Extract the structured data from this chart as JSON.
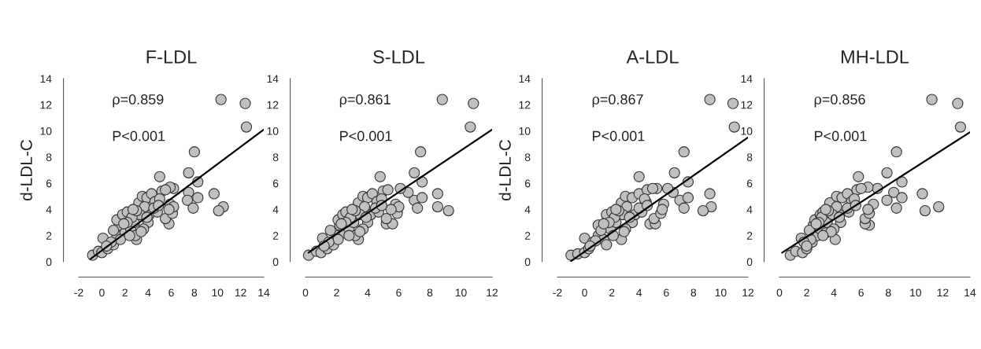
{
  "chart_data": [
    {
      "type": "scatter",
      "title": "F-LDL",
      "ylabel": "d-LDL-C",
      "xlim": [
        -2,
        14
      ],
      "ylim": [
        0,
        14
      ],
      "xticks": [
        -2,
        0,
        2,
        4,
        6,
        8,
        10,
        12,
        14
      ],
      "yticks": [
        0,
        2,
        4,
        6,
        8,
        10,
        12,
        14
      ],
      "marker": "circle",
      "grid": false,
      "annotations": [
        "ρ=0.859",
        "P<0.001"
      ],
      "series": [
        {
          "color": "#c0c0c0",
          "x": [
            10.3,
            12.4,
            12.5,
            8,
            7.5,
            8.3,
            7.5,
            7.4,
            8.3,
            7.9,
            9.7,
            10.5,
            10.1,
            5,
            5.8,
            5.5,
            6.2,
            5.9,
            6.1,
            5.9,
            6.2,
            5.8,
            -0.8,
            -0.3,
            0,
            0.1,
            0.5,
            1,
            1.3,
            1.5,
            1.3,
            1.8,
            2.2,
            2,
            1.6,
            2.5,
            2.8,
            3,
            2.9,
            3.2,
            3.5,
            3.9,
            4,
            4.3,
            4.1,
            4.6,
            4.8,
            5.2,
            5.5,
            5,
            3.7,
            3.3,
            2.6,
            2.2,
            1,
            0.8,
            3.6,
            3.4,
            4.5,
            2.4,
            3,
            4.9,
            1.9,
            0.4,
            2.7,
            3.9
          ],
          "values": [
            12.4,
            12.1,
            10.3,
            8.4,
            6.8,
            6.1,
            5.3,
            4.7,
            4.9,
            4.1,
            5.2,
            4.2,
            3.9,
            6.5,
            2.9,
            3.3,
            5.6,
            5.7,
            3.7,
            4.4,
            4.2,
            4,
            0.5,
            0.8,
            0.7,
            1.8,
            1,
            1.3,
            2,
            2.8,
            3.2,
            3.6,
            3.8,
            2.2,
            1.7,
            2.5,
            3,
            1.7,
            2,
            4.5,
            5,
            4.9,
            3,
            5.2,
            3.6,
            4.6,
            3.8,
            5.4,
            5.5,
            4.8,
            4.2,
            3.6,
            3.4,
            3,
            2.4,
            1.5,
            2.5,
            2.3,
            4.1,
            2,
            3.9,
            4.3,
            2.9,
            1.2,
            4,
            3.4
          ]
        },
        {
          "type": "line",
          "color": "#000000",
          "marker": "none",
          "x": [
            -1,
            14
          ],
          "values": [
            0.2,
            10.1
          ]
        }
      ]
    },
    {
      "type": "scatter",
      "title": "S-LDL",
      "xlim": [
        0,
        12
      ],
      "ylim": [
        0,
        14
      ],
      "xticks": [
        0,
        2,
        4,
        6,
        8,
        10,
        12
      ],
      "yticks": [
        0,
        2,
        4,
        6,
        8,
        10,
        12,
        14
      ],
      "marker": "circle",
      "grid": false,
      "annotations": [
        "ρ=0.861",
        "P<0.001"
      ],
      "series": [
        {
          "color": "#c0c0c0",
          "x": [
            8.8,
            10.8,
            10.6,
            7.4,
            7,
            7.5,
            7,
            7.5,
            7.2,
            8.5,
            8.5,
            9.2,
            4.8,
            5.2,
            5.6,
            5.2,
            6.6,
            6.1,
            5.9,
            5.8,
            6,
            5.5,
            0.2,
            0.7,
            1,
            1.1,
            1.4,
            1.8,
            2,
            2.2,
            2.1,
            2.4,
            2.6,
            2.5,
            2.1,
            2.8,
            3.1,
            3.4,
            3.2,
            3.4,
            3.7,
            4,
            4,
            4.3,
            4.2,
            4.6,
            4.7,
            5,
            5.3,
            4.9,
            3.8,
            3.5,
            2.9,
            2.6,
            1.6,
            1.5,
            3.7,
            3.5,
            4.5,
            2.8,
            3.2,
            4.9,
            2.3,
            1.2,
            3,
            3.9
          ],
          "values": [
            12.4,
            12.1,
            10.3,
            8.4,
            6.8,
            6.1,
            4.7,
            4.9,
            4.1,
            5.2,
            4.2,
            3.9,
            6.5,
            2.9,
            2.9,
            3.3,
            5.3,
            5.6,
            3.7,
            4.4,
            4.2,
            4,
            0.5,
            0.8,
            0.7,
            1.8,
            1,
            1.3,
            2,
            2.8,
            3.2,
            3.6,
            3.8,
            2.2,
            1.7,
            2.5,
            3,
            1.7,
            2,
            4.5,
            5,
            4.9,
            3,
            5.2,
            3.6,
            4.6,
            3.8,
            5.4,
            5.5,
            4.8,
            4.2,
            3.6,
            3.4,
            3,
            2.4,
            1.5,
            2.5,
            2.3,
            4.1,
            2,
            3.9,
            4.3,
            2.9,
            1.2,
            4,
            3.4
          ]
        },
        {
          "type": "line",
          "color": "#000000",
          "marker": "none",
          "x": [
            0.2,
            12
          ],
          "values": [
            0.7,
            10.1
          ]
        }
      ]
    },
    {
      "type": "scatter",
      "title": "A-LDL",
      "ylabel": "d-LDL-C",
      "xlim": [
        -2,
        12
      ],
      "ylim": [
        0,
        14
      ],
      "xticks": [
        -2,
        0,
        2,
        4,
        6,
        8,
        10,
        12
      ],
      "yticks": [
        0,
        2,
        4,
        6,
        8,
        10,
        12,
        14
      ],
      "marker": "circle",
      "grid": false,
      "annotations": [
        "ρ=0.867",
        "P<0.001"
      ],
      "series": [
        {
          "color": "#c0c0c0",
          "x": [
            9.2,
            10.9,
            11,
            7.3,
            6.6,
            7.6,
            6.5,
            7,
            7.6,
            7.3,
            9.2,
            9.3,
            8.7,
            4,
            4.8,
            5.2,
            5.1,
            6.1,
            5.3,
            5.6,
            5.8,
            5.7,
            -1,
            -0.5,
            0,
            0,
            0.3,
            0.6,
            1,
            1,
            1.6,
            2,
            1.4,
            1.9,
            2.3,
            2.7,
            1.6,
            2.7,
            3,
            3.5,
            3.5,
            4,
            3.7,
            4.5,
            4.2,
            4.6,
            5,
            4.4,
            3.1,
            2.8,
            2.2,
            1.8,
            1.2,
            0.8,
            3,
            2.9,
            4,
            2.1,
            2.5,
            4.6,
            1.4,
            0.4,
            2.3,
            3.3
          ],
          "values": [
            12.4,
            12.1,
            10.3,
            8.4,
            6.8,
            6.1,
            5.3,
            4.7,
            4.9,
            4.1,
            5.2,
            4.2,
            3.9,
            6.5,
            2.9,
            2.9,
            3.3,
            5.6,
            5.6,
            3.7,
            4.4,
            4,
            0.5,
            0.6,
            0.7,
            1.8,
            1,
            1.5,
            2,
            2.8,
            3.6,
            3.8,
            1.7,
            2.5,
            3,
            1.7,
            1.3,
            4.5,
            5,
            4.9,
            3,
            5.2,
            3.6,
            4.6,
            3.8,
            5.5,
            5.6,
            4.8,
            4.2,
            3.6,
            3.4,
            3,
            2.4,
            1.6,
            2.5,
            2.3,
            4.1,
            2,
            3.9,
            4.3,
            2.9,
            1.2,
            4,
            3.4
          ]
        },
        {
          "type": "line",
          "color": "#000000",
          "marker": "none",
          "x": [
            -1,
            12
          ],
          "values": [
            0.05,
            9.5
          ]
        }
      ]
    },
    {
      "type": "scatter",
      "title": "MH-LDL",
      "xlim": [
        0,
        14
      ],
      "ylim": [
        0,
        14
      ],
      "xticks": [
        0,
        2,
        4,
        6,
        8,
        10,
        12,
        14
      ],
      "yticks": [
        0,
        2,
        4,
        6,
        8,
        10,
        12,
        14
      ],
      "marker": "circle",
      "grid": false,
      "annotations": [
        "ρ=0.856",
        "P<0.001"
      ],
      "series": [
        {
          "color": "#c0c0c0",
          "x": [
            11.2,
            13.1,
            13.3,
            8.6,
            7.9,
            9,
            8.4,
            7.9,
            9,
            8.6,
            10.5,
            11.7,
            10.7,
            5.8,
            6.6,
            6.3,
            6.3,
            7.2,
            6.5,
            6.6,
            6.9,
            6.5,
            0.8,
            1.2,
            1.7,
            1.6,
            2,
            2.4,
            2.8,
            2.5,
            2.6,
            3,
            3.2,
            2.3,
            3,
            3.5,
            4.1,
            3.4,
            3.7,
            4.2,
            4.6,
            4.5,
            5,
            4.4,
            5.3,
            5.1,
            5.7,
            6,
            5.5,
            4.2,
            3.9,
            3.1,
            2.9,
            2.2,
            1.8,
            4,
            3.8,
            5,
            3.2,
            3.6,
            5.6,
            2.7,
            2,
            3.4,
            4.4
          ],
          "values": [
            12.4,
            12.1,
            10.3,
            8.4,
            6.8,
            6.1,
            5.3,
            4.7,
            4.9,
            4.1,
            5.2,
            4.2,
            3.9,
            6.5,
            2.8,
            2.9,
            3.3,
            5.6,
            5.7,
            3.7,
            4.4,
            4,
            0.5,
            0.8,
            0.7,
            1.8,
            1,
            1.5,
            2,
            2.8,
            3.2,
            3.6,
            3.8,
            1.7,
            2.5,
            3,
            1.7,
            2.2,
            4.5,
            5,
            4.9,
            3,
            5.2,
            3.6,
            4.6,
            3.8,
            5.5,
            5.6,
            4.8,
            4.2,
            3.6,
            3.4,
            3,
            2.4,
            1.5,
            2.5,
            2.3,
            4.1,
            2,
            3.9,
            4.3,
            2.9,
            1.2,
            4,
            3.4
          ]
        },
        {
          "type": "line",
          "color": "#000000",
          "marker": "none",
          "x": [
            0.2,
            14
          ],
          "values": [
            0.7,
            9.9
          ]
        }
      ]
    }
  ]
}
